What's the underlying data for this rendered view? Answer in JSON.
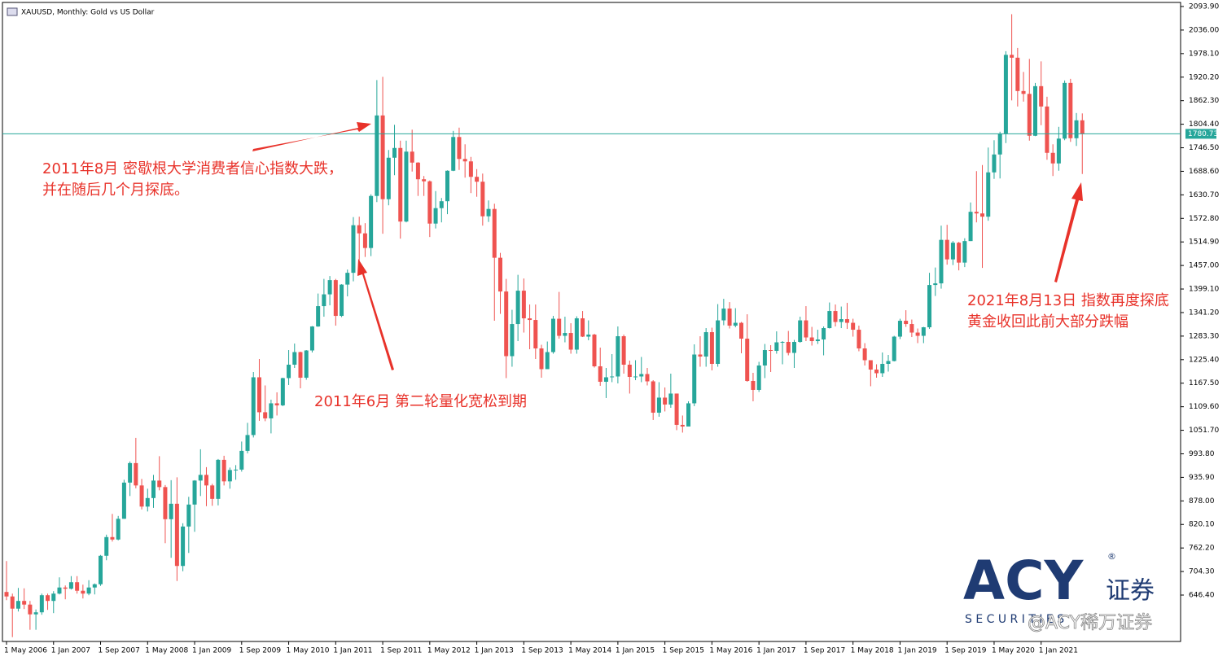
{
  "chart_data": {
    "type": "candlestick",
    "title": "XAUUSD, Monthly:  Gold vs US Dollar",
    "categories": [
      "1 May 2006",
      null,
      null,
      null,
      null,
      null,
      null,
      null,
      "1 Jan 2007",
      null,
      null,
      null,
      null,
      null,
      null,
      null,
      "1 Sep 2007",
      null,
      null,
      null,
      null,
      null,
      null,
      null,
      "1 May 2008",
      null,
      null,
      null,
      null,
      null,
      null,
      null,
      "1 Jan 2009",
      null,
      null,
      null,
      null,
      null,
      null,
      null,
      "1 Sep 2009",
      null,
      null,
      null,
      null,
      null,
      null,
      null,
      "1 May 2010",
      null,
      null,
      null,
      null,
      null,
      null,
      null,
      "1 Jan 2011",
      null,
      null,
      null,
      null,
      null,
      null,
      null,
      "1 Sep 2011",
      null,
      null,
      null,
      null,
      null,
      null,
      null,
      "1 May 2012",
      null,
      null,
      null,
      null,
      null,
      null,
      null,
      "1 Jan 2013",
      null,
      null,
      null,
      null,
      null,
      null,
      null,
      "1 Sep 2013",
      null,
      null,
      null,
      null,
      null,
      null,
      null,
      "1 May 2014",
      null,
      null,
      null,
      null,
      null,
      null,
      null,
      "1 Jan 2015",
      null,
      null,
      null,
      null,
      null,
      null,
      null,
      "1 Sep 2015",
      null,
      null,
      null,
      null,
      null,
      null,
      null,
      "1 May 2016",
      null,
      null,
      null,
      null,
      null,
      null,
      null,
      "1 Jan 2017",
      null,
      null,
      null,
      null,
      null,
      null,
      null,
      "1 Sep 2017",
      null,
      null,
      null,
      null,
      null,
      null,
      null,
      "1 May 2018",
      null,
      null,
      null,
      null,
      null,
      null,
      null,
      "1 Jan 2019",
      null,
      null,
      null,
      null,
      null,
      null,
      null,
      "1 Sep 2019",
      null,
      null,
      null,
      null,
      null,
      null,
      null,
      "1 May 2020",
      null,
      null,
      null,
      null,
      null,
      null,
      null,
      "1 Jan 2021",
      null,
      null,
      null,
      null,
      null,
      null,
      null
    ],
    "open": [
      654,
      643,
      613,
      632,
      623,
      599,
      604,
      646,
      632,
      650,
      665,
      662,
      678,
      657,
      650,
      665,
      673,
      743,
      789,
      783,
      834,
      923,
      971,
      916,
      864,
      885,
      928,
      912,
      833,
      871,
      718,
      815,
      869,
      928,
      942,
      916,
      883,
      979,
      926,
      954,
      955,
      1001,
      1040,
      1182,
      1096,
      1081,
      1118,
      1113,
      1180,
      1213,
      1244,
      1181,
      1248,
      1307,
      1357,
      1386,
      1421,
      1333,
      1410,
      1439,
      1556,
      1536,
      1500,
      1628,
      1826,
      1620,
      1722,
      1746,
      1565,
      1737,
      1710,
      1669,
      1664,
      1560,
      1598,
      1615,
      1690,
      1773,
      1719,
      1713,
      1675,
      1663,
      1578,
      1596,
      1476,
      1393,
      1234,
      1313,
      1395,
      1327,
      1323,
      1253,
      1202,
      1244,
      1326,
      1284,
      1291,
      1250,
      1327,
      1282,
      1287,
      1209,
      1171,
      1182,
      1184,
      1283,
      1213,
      1183,
      1184,
      1190,
      1172,
      1095,
      1132,
      1115,
      1142,
      1065,
      1061,
      1118,
      1238,
      1233,
      1293,
      1215,
      1322,
      1351,
      1309,
      1316,
      1277,
      1173,
      1151,
      1211,
      1249,
      1247,
      1268,
      1269,
      1242,
      1269,
      1322,
      1280,
      1271,
      1275,
      1303,
      1345,
      1318,
      1325,
      1316,
      1299,
      1253,
      1224,
      1201,
      1192,
      1215,
      1222,
      1282,
      1321,
      1313,
      1292,
      1284,
      1305,
      1409,
      1413,
      1520,
      1472,
      1513,
      1464,
      1517,
      1589,
      1585,
      1577,
      1686,
      1730,
      1781,
      1975,
      1968,
      1886,
      1879,
      1776,
      1898,
      1848,
      1734,
      1708,
      1769,
      1906,
      1770,
      1814
    ],
    "high": [
      730,
      650,
      664,
      663,
      632,
      611,
      650,
      650,
      656,
      690,
      670,
      693,
      693,
      672,
      683,
      675,
      745,
      795,
      846,
      841,
      930,
      975,
      1033,
      932,
      908,
      942,
      988,
      917,
      929,
      936,
      823,
      888,
      929,
      1005,
      961,
      920,
      981,
      989,
      960,
      966,
      1024,
      1070,
      1195,
      1227,
      1162,
      1127,
      1145,
      1181,
      1249,
      1265,
      1245,
      1249,
      1308,
      1388,
      1424,
      1431,
      1424,
      1411,
      1447,
      1576,
      1577,
      1561,
      1632,
      1913,
      1921,
      1741,
      1803,
      1764,
      1764,
      1791,
      1711,
      1677,
      1666,
      1640,
      1623,
      1691,
      1788,
      1796,
      1755,
      1724,
      1694,
      1683,
      1617,
      1609,
      1488,
      1424,
      1348,
      1434,
      1425,
      1361,
      1361,
      1262,
      1270,
      1333,
      1392,
      1331,
      1315,
      1332,
      1345,
      1322,
      1289,
      1255,
      1205,
      1239,
      1307,
      1287,
      1223,
      1224,
      1232,
      1205,
      1175,
      1170,
      1157,
      1191,
      1142,
      1088,
      1123,
      1263,
      1283,
      1303,
      1304,
      1362,
      1375,
      1367,
      1352,
      1318,
      1337,
      1193,
      1220,
      1264,
      1261,
      1295,
      1271,
      1296,
      1274,
      1331,
      1357,
      1306,
      1299,
      1307,
      1366,
      1361,
      1356,
      1365,
      1326,
      1309,
      1266,
      1224,
      1214,
      1243,
      1237,
      1284,
      1326,
      1347,
      1324,
      1302,
      1306,
      1439,
      1452,
      1555,
      1557,
      1517,
      1515,
      1524,
      1612,
      1689,
      1704,
      1747,
      1765,
      1786,
      1984,
      2075,
      1992,
      1933,
      1965,
      1906,
      1959,
      1872,
      1755,
      1798,
      1912,
      1916,
      1832,
      1831
    ],
    "low": [
      634,
      543,
      606,
      612,
      561,
      561,
      598,
      610,
      602,
      648,
      636,
      660,
      650,
      638,
      646,
      648,
      669,
      732,
      778,
      781,
      834,
      890,
      909,
      857,
      852,
      861,
      904,
      774,
      738,
      681,
      705,
      750,
      802,
      890,
      865,
      866,
      867,
      916,
      908,
      930,
      950,
      995,
      1034,
      1075,
      1074,
      1044,
      1088,
      1111,
      1163,
      1205,
      1155,
      1176,
      1243,
      1306,
      1331,
      1359,
      1309,
      1330,
      1381,
      1418,
      1462,
      1478,
      1480,
      1613,
      1535,
      1605,
      1679,
      1523,
      1563,
      1688,
      1628,
      1628,
      1527,
      1548,
      1563,
      1583,
      1689,
      1692,
      1673,
      1635,
      1626,
      1555,
      1564,
      1321,
      1338,
      1180,
      1208,
      1271,
      1292,
      1251,
      1227,
      1181,
      1203,
      1240,
      1277,
      1268,
      1240,
      1240,
      1281,
      1273,
      1206,
      1161,
      1131,
      1170,
      1167,
      1191,
      1142,
      1175,
      1170,
      1162,
      1077,
      1085,
      1098,
      1107,
      1052,
      1046,
      1062,
      1111,
      1208,
      1208,
      1199,
      1208,
      1310,
      1302,
      1305,
      1241,
      1171,
      1123,
      1146,
      1180,
      1195,
      1240,
      1214,
      1236,
      1205,
      1267,
      1271,
      1260,
      1264,
      1236,
      1302,
      1307,
      1303,
      1301,
      1282,
      1246,
      1211,
      1160,
      1181,
      1183,
      1196,
      1221,
      1276,
      1306,
      1281,
      1266,
      1266,
      1301,
      1382,
      1400,
      1459,
      1458,
      1445,
      1453,
      1517,
      1563,
      1451,
      1567,
      1670,
      1671,
      1758,
      1863,
      1848,
      1860,
      1764,
      1775,
      1802,
      1717,
      1677,
      1690,
      1765,
      1761,
      1751,
      1682
    ],
    "close": [
      643,
      613,
      632,
      623,
      599,
      604,
      646,
      632,
      650,
      665,
      662,
      678,
      657,
      650,
      665,
      673,
      743,
      789,
      783,
      834,
      923,
      971,
      916,
      864,
      885,
      928,
      912,
      833,
      871,
      718,
      815,
      869,
      928,
      942,
      916,
      883,
      979,
      926,
      954,
      955,
      1001,
      1040,
      1182,
      1096,
      1081,
      1118,
      1113,
      1180,
      1213,
      1244,
      1181,
      1248,
      1307,
      1357,
      1386,
      1421,
      1333,
      1410,
      1439,
      1556,
      1536,
      1500,
      1628,
      1826,
      1620,
      1722,
      1746,
      1565,
      1737,
      1710,
      1669,
      1664,
      1560,
      1598,
      1615,
      1690,
      1773,
      1719,
      1713,
      1675,
      1663,
      1578,
      1596,
      1476,
      1393,
      1234,
      1313,
      1395,
      1327,
      1323,
      1253,
      1202,
      1244,
      1326,
      1284,
      1291,
      1250,
      1327,
      1282,
      1287,
      1209,
      1171,
      1182,
      1184,
      1283,
      1213,
      1183,
      1184,
      1190,
      1172,
      1095,
      1132,
      1115,
      1142,
      1065,
      1061,
      1118,
      1238,
      1233,
      1293,
      1215,
      1322,
      1351,
      1309,
      1316,
      1277,
      1173,
      1151,
      1211,
      1249,
      1247,
      1268,
      1269,
      1242,
      1269,
      1322,
      1280,
      1271,
      1275,
      1303,
      1345,
      1318,
      1325,
      1316,
      1299,
      1253,
      1224,
      1201,
      1192,
      1215,
      1222,
      1282,
      1321,
      1313,
      1292,
      1284,
      1305,
      1409,
      1413,
      1520,
      1472,
      1513,
      1464,
      1517,
      1589,
      1585,
      1577,
      1686,
      1730,
      1781,
      1975,
      1968,
      1886,
      1879,
      1776,
      1898,
      1848,
      1734,
      1708,
      1769,
      1906,
      1770,
      1814,
      1780.73
    ],
    "up_color": "#26a69a",
    "down_color": "#ef5350",
    "ylim": [
      532.3,
      2101.9
    ],
    "yticks": [
      {
        "value": 646.4,
        "label": "646.40"
      },
      {
        "value": 704.3,
        "label": "704.30"
      },
      {
        "value": 762.2,
        "label": "762.20"
      },
      {
        "value": 820.1,
        "label": "820.10"
      },
      {
        "value": 878.0,
        "label": "878.00"
      },
      {
        "value": 935.9,
        "label": "935.90"
      },
      {
        "value": 993.8,
        "label": "993.80"
      },
      {
        "value": 1051.7,
        "label": "1051.70"
      },
      {
        "value": 1109.6,
        "label": "1109.60"
      },
      {
        "value": 1167.5,
        "label": "1167.50"
      },
      {
        "value": 1225.4,
        "label": "1225.40"
      },
      {
        "value": 1283.3,
        "label": "1283.30"
      },
      {
        "value": 1341.2,
        "label": "1341.20"
      },
      {
        "value": 1399.1,
        "label": "1399.10"
      },
      {
        "value": 1457.0,
        "label": "1457.00"
      },
      {
        "value": 1514.9,
        "label": "1514.90"
      },
      {
        "value": 1572.8,
        "label": "1572.80"
      },
      {
        "value": 1630.7,
        "label": "1630.70"
      },
      {
        "value": 1688.6,
        "label": "1688.60"
      },
      {
        "value": 1746.5,
        "label": "1746.50"
      },
      {
        "value": 1804.4,
        "label": "1804.40"
      },
      {
        "value": 1862.3,
        "label": "1862.30"
      },
      {
        "value": 1920.2,
        "label": "1920.20"
      },
      {
        "value": 1978.1,
        "label": "1978.10"
      },
      {
        "value": 2036.0,
        "label": "2036.00"
      },
      {
        "value": 2093.9,
        "label": "2093.90"
      }
    ],
    "grid": false,
    "price_line": 1780.73,
    "price_line_color": "#26a69a",
    "annotations": [
      {
        "lines": [
          "2011年8月 密歇根大学消费者信心指数大跌，",
          "并在随后几个月探底。"
        ]
      },
      {
        "lines": [
          "2011年6月 第二轮量化宽松到期"
        ]
      },
      {
        "lines": [
          "2021年8月13日 指数再度探底",
          "黄金收回此前大部分跌幅"
        ]
      }
    ],
    "logo": "ACY",
    "logo_cn": "证券",
    "logo_mark": "®",
    "logo_tagline": "S E C U R I T I E S",
    "watermark": "@ACY稀万证券"
  }
}
